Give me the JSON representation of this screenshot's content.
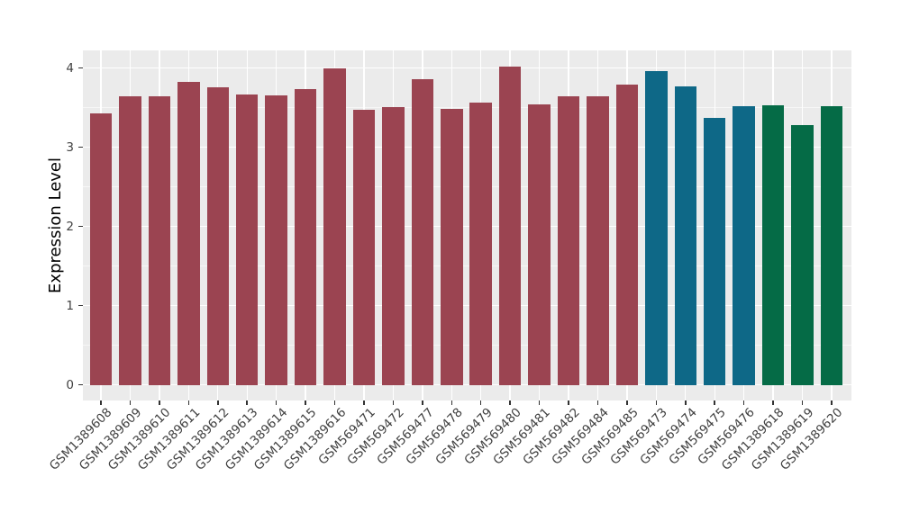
{
  "chart_data": {
    "type": "bar",
    "title": "",
    "xlabel": "",
    "ylabel": "Expression Level",
    "yticks": [
      0,
      1,
      2,
      3,
      4
    ],
    "yminor": [
      0.5,
      1.5,
      2.5,
      3.5
    ],
    "ylim": [
      -0.2,
      4.22
    ],
    "grid": "on",
    "legend": "none",
    "panel_bg": "#EBEBEB",
    "grid_color": "#FFFFFF",
    "tick_color": "#333333",
    "axis_text_color": "#404040",
    "categories": [
      "GSM1389608",
      "GSM1389609",
      "GSM1389610",
      "GSM1389611",
      "GSM1389612",
      "GSM1389613",
      "GSM1389614",
      "GSM1389615",
      "GSM1389616",
      "GSM569471",
      "GSM569472",
      "GSM569477",
      "GSM569478",
      "GSM569479",
      "GSM569480",
      "GSM569481",
      "GSM569482",
      "GSM569484",
      "GSM569485",
      "GSM569473",
      "GSM569474",
      "GSM569475",
      "GSM569476",
      "GSM1389618",
      "GSM1389619",
      "GSM1389620"
    ],
    "values": [
      3.43,
      3.65,
      3.64,
      3.83,
      3.76,
      3.67,
      3.66,
      3.74,
      4.0,
      3.47,
      3.51,
      3.86,
      3.48,
      3.56,
      4.02,
      3.54,
      3.64,
      3.65,
      3.79,
      3.96,
      3.77,
      3.37,
      3.52,
      3.53,
      3.28,
      3.52
    ],
    "bar_groups": [
      "maroon",
      "maroon",
      "maroon",
      "maroon",
      "maroon",
      "maroon",
      "maroon",
      "maroon",
      "maroon",
      "maroon",
      "maroon",
      "maroon",
      "maroon",
      "maroon",
      "maroon",
      "maroon",
      "maroon",
      "maroon",
      "maroon",
      "teal",
      "teal",
      "teal",
      "teal",
      "green",
      "green",
      "green"
    ],
    "colors": {
      "maroon": "#9B4451",
      "teal": "#0E6887",
      "green": "#056B46"
    }
  }
}
